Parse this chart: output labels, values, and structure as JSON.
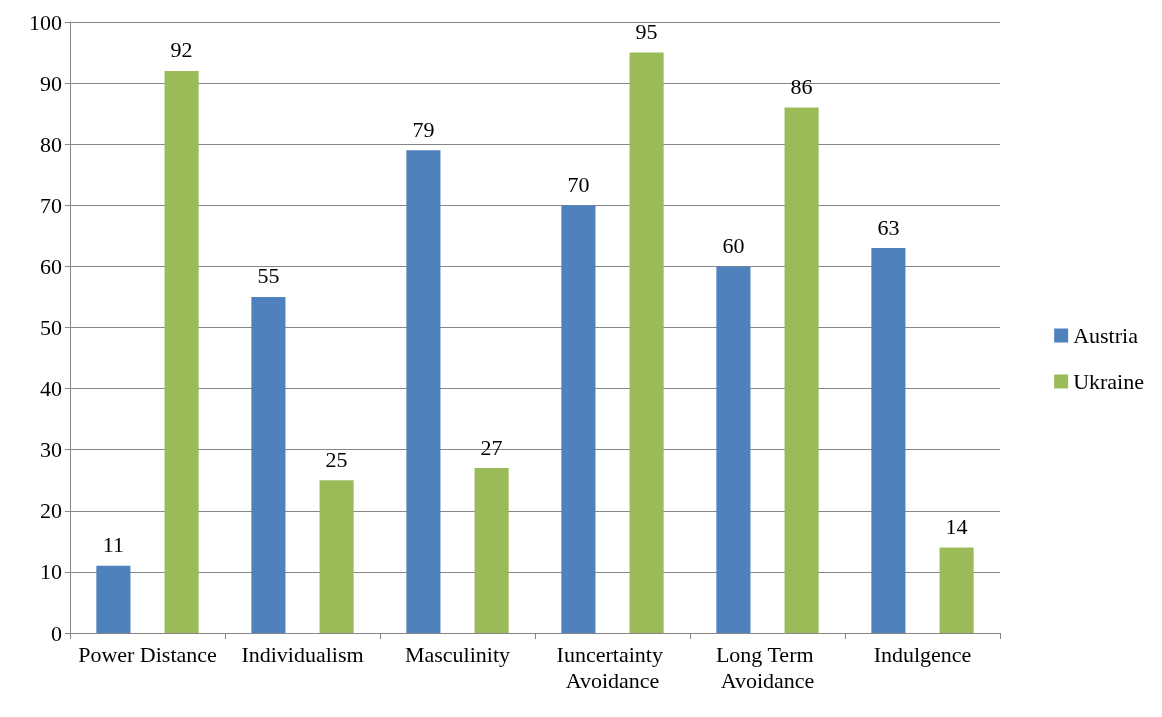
{
  "chart_data": {
    "type": "bar",
    "categories": [
      "Power Distance",
      "Individualism",
      "Masculinity",
      "Iuncertainty Avoidance",
      "Long Term Avoidance",
      "Indulgence"
    ],
    "series": [
      {
        "name": "Austria",
        "color": "#4f81bd",
        "values": [
          11,
          55,
          79,
          70,
          60,
          63
        ]
      },
      {
        "name": "Ukraine",
        "color": "#9bbb59",
        "values": [
          92,
          25,
          27,
          95,
          86,
          14
        ]
      }
    ],
    "ylim": [
      0,
      100
    ],
    "yticks": [
      0,
      10,
      20,
      30,
      40,
      50,
      60,
      70,
      80,
      90,
      100
    ],
    "grid": "y",
    "legend": "right",
    "data_labels": true
  }
}
